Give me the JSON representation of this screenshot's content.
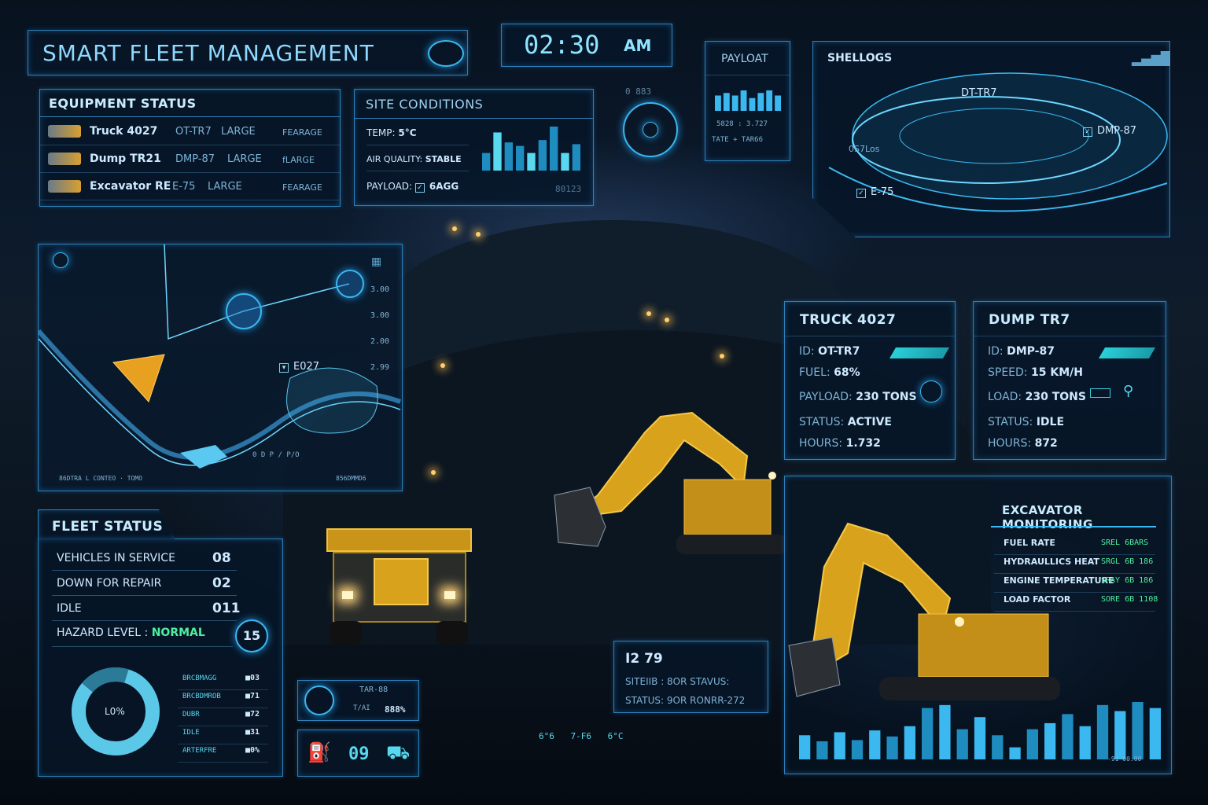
{
  "header": {
    "title": "SMART FLEET MANAGEMENT",
    "clock": "02:30 AM",
    "clock_time": "02:30",
    "clock_ampm": "AM"
  },
  "equipment_status": {
    "title": "EQUIPMENT STATUS",
    "items": [
      {
        "name": "Truck 4027",
        "id": "OT-TR7",
        "size": "LARGE",
        "tag": "FEARAGE"
      },
      {
        "name": "Dump TR21",
        "id": "DMP-87",
        "size": "LARGE",
        "tag": "fLARGE"
      },
      {
        "name": "Excavator RE",
        "id": "E-75",
        "size": "LARGE",
        "tag": "FEARAGE"
      }
    ]
  },
  "site_conditions": {
    "title": "SITE CONDITIONS",
    "rows": [
      {
        "label": "TEMP:",
        "value": "5°C"
      },
      {
        "label": "AIR QUALITY:",
        "value": "STABLE"
      },
      {
        "label": "PAYLOAD:",
        "value": "6AGG"
      }
    ],
    "footer": "80123",
    "bars": [
      30,
      65,
      48,
      42,
      30,
      52,
      75,
      30,
      45
    ]
  },
  "small_readout": {
    "text": "0 883"
  },
  "payload": {
    "title": "PAYLOAT",
    "line1": "5828 : 3.727",
    "line2": "TATE + TAR66",
    "bars": [
      6,
      7,
      6,
      8,
      5,
      7,
      8,
      6
    ]
  },
  "terrain": {
    "title": "SHELLOGS",
    "labels": {
      "a": "DT-TR7",
      "b": "DMP-87",
      "c": "E-75",
      "d": "0S7Los"
    }
  },
  "site_map": {
    "vehicle": "E027",
    "scale": [
      "3.00",
      "3.00",
      "2.00",
      "2.99"
    ],
    "footer_left": "86DTRA L CONTEO  · TOMO",
    "footer_right": "856DMMD6",
    "route": "0 D P / P/O"
  },
  "truck_card": {
    "title": "TRUCK 4027",
    "rows": [
      {
        "label": "ID:",
        "value": "OT-TR7"
      },
      {
        "label": "FUEL:",
        "value": "68%"
      },
      {
        "label": "PAYLOAD:",
        "value": "230 TONS"
      },
      {
        "label": "STATUS:",
        "value": "ACTIVE"
      },
      {
        "label": "HOURS:",
        "value": "1.732"
      }
    ]
  },
  "dump_card": {
    "title": "DUMP TR7",
    "rows": [
      {
        "label": "ID:",
        "value": "DMP-87"
      },
      {
        "label": "SPEED:",
        "value": "15 KM/H"
      },
      {
        "label": "LOAD:",
        "value": "230 TONS"
      },
      {
        "label": "STATUS:",
        "value": "IDLE"
      },
      {
        "label": "HOURS:",
        "value": "872"
      }
    ]
  },
  "fleet_status": {
    "title": "FLEET STATUS",
    "rows": [
      {
        "label": "VEHICLES IN SERVICE",
        "value": "08"
      },
      {
        "label": "DOWN FOR REPAIR",
        "value": "02"
      },
      {
        "label": "IDLE",
        "value": "011"
      }
    ],
    "hazard_label": "HAZARD LEVEL :",
    "hazard_value": "NORMAL",
    "badge": "15",
    "donut_label": "L0%",
    "legend": [
      {
        "label": "BRCBMAGG",
        "value": "03"
      },
      {
        "label": "BRCBDMROB",
        "value": "71"
      },
      {
        "label": "DUBR",
        "value": "72"
      },
      {
        "label": "IDLE",
        "value": "31"
      },
      {
        "label": "ARTERFRE",
        "value": "0%"
      }
    ]
  },
  "nav_widget": {
    "top": "TAR-88",
    "mid": "T/AI",
    "pct": "888%",
    "count": "09"
  },
  "status_box": {
    "title": "I2 79",
    "line1": "SITEIIB : 8OR STAVUS:",
    "line2": "STATUS: 9OR RONRR-272"
  },
  "bottom_readout": {
    "a": "6°6",
    "b": "7-F6",
    "c": "6°C"
  },
  "excavator_monitoring": {
    "title": "EXCAVATOR MONITORING",
    "rows": [
      {
        "label": "FUEL RATE",
        "value": "SREL 6BARS"
      },
      {
        "label": "HYDRAULLICS HEAT",
        "value": "SRGL 6B 186"
      },
      {
        "label": "ENGINE TEMPERATURE",
        "value": "SRAY 6B 186"
      },
      {
        "label": "LOAD FACTOR",
        "value": "SORE 6B 1108"
      }
    ],
    "bars": [
      40,
      30,
      45,
      32,
      48,
      38,
      55,
      85,
      90,
      50,
      70,
      40,
      20,
      50,
      60,
      75,
      55,
      90,
      80,
      95,
      85
    ],
    "footer": "-91 00.00"
  },
  "colors": {
    "accent": "#3bb8ef",
    "title": "#8fd8ff",
    "green": "#4ef0a0",
    "machine_yellow": "#e8b020"
  }
}
